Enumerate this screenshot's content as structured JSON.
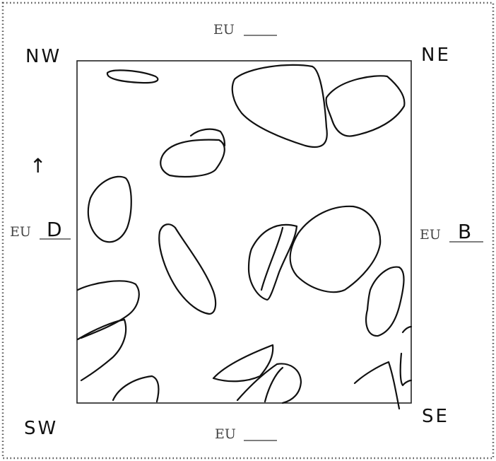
{
  "corners": {
    "nw": "NW",
    "ne": "NE",
    "sw": "SW",
    "se": "SE"
  },
  "eu_top": {
    "prefix": "EU",
    "value": ""
  },
  "eu_bottom": {
    "prefix": "EU",
    "value": ""
  },
  "eu_left": {
    "prefix": "EU",
    "value": "D"
  },
  "eu_right": {
    "prefix": "EU",
    "value": "B"
  },
  "north_arrow": "↑"
}
